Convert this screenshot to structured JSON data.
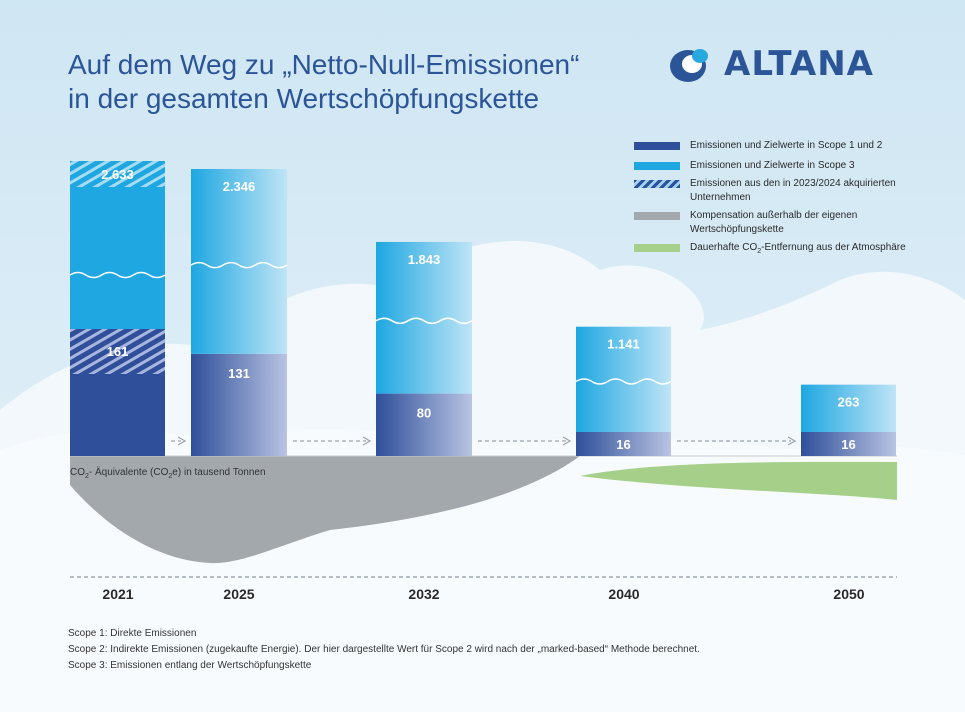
{
  "title": {
    "line1": "Auf dem Weg zu „Netto-Null-Emissionen“",
    "line2": "in der gesamten Wertschöpfungskette"
  },
  "logo": {
    "text": "ALTANA",
    "color": "#2b5597"
  },
  "legend": [
    {
      "key": "scope12",
      "label": "Emissionen und Zielwerte in Scope 1 und 2",
      "color": "#2f4f9a"
    },
    {
      "key": "scope3",
      "label": "Emissionen und Zielwerte in Scope 3",
      "color": "#1ea7e1"
    },
    {
      "key": "acquired",
      "label": "Emissionen aus den in 2023/2024 akquirierten Unternehmen",
      "color": "#9fd6f2"
    },
    {
      "key": "compensation",
      "label": "Kompensation außerhalb der eigenen Wertschöpfungskette",
      "color": "#a3a8ad"
    },
    {
      "key": "removal",
      "label_pre": "Dauerhafte CO",
      "label_sub": "2",
      "label_post": "-Entfernung aus der Atmosphäre",
      "color": "#a6d08a"
    }
  ],
  "unit_label": {
    "pre": "CO",
    "sub1": "2",
    "mid": "- Äquivalente (CO",
    "sub2": "2",
    "post": "e) in tausend Tonnen"
  },
  "chart_data": {
    "type": "bar",
    "categories": [
      "2021",
      "2025",
      "2032",
      "2040",
      "2050"
    ],
    "series": [
      {
        "name": "Emissionen und Zielwerte in Scope 1 und 2",
        "values": [
          161,
          131,
          80,
          16,
          16
        ]
      },
      {
        "name": "Emissionen und Zielwerte in Scope 3",
        "values": [
          2633,
          2346,
          1843,
          1141,
          263
        ]
      }
    ],
    "acquired_segments": [
      "2021 Scope 1/2 (oberer Teil)",
      "2021 Scope 3 (oberer Teil)"
    ],
    "scale_breaks": true,
    "compensation_area": "gray area below baseline, peaking around 2025",
    "removal_area": "green area below baseline, from about 2035 to 2050"
  },
  "footnotes": [
    "Scope 1: Direkte Emissionen",
    "Scope 2: Indirekte Emissionen (zugekaufte Energie). Der hier dargestellte Wert für Scope 2 wird nach der „marked-based“ Methode berechnet.",
    "Scope 3: Emissionen entlang der Wertschöpfungskette"
  ]
}
